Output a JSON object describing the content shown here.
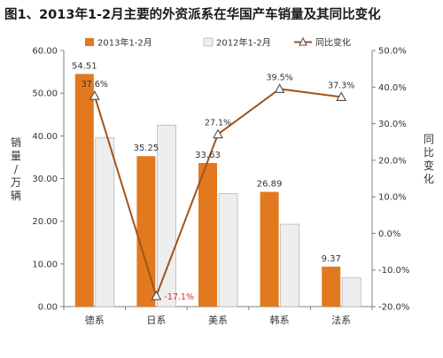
{
  "title": "图1、2013年1-2月主要的外资派系在华国产车销量及其同比变化",
  "ylabel_left_chars": [
    "销",
    "量",
    "/",
    "万",
    "辆"
  ],
  "ylabel_right_chars": [
    "同",
    "比",
    "变",
    "化"
  ],
  "colors": {
    "bar_2013": "#e2791f",
    "bar_2012": "#eeeeee",
    "bar_2012_stroke": "#b8b8b8",
    "line": "#a0541c",
    "negative_label": "#e8281e"
  },
  "chart_data": {
    "type": "bar",
    "categories": [
      "德系",
      "日系",
      "美系",
      "韩系",
      "法系"
    ],
    "series": [
      {
        "name": "2013年1-2月",
        "kind": "bar",
        "axis": "left",
        "values": [
          54.51,
          35.25,
          33.63,
          26.89,
          9.37
        ],
        "labels": [
          "54.51",
          "35.25",
          "33.63",
          "26.89",
          "9.37"
        ]
      },
      {
        "name": "2012年1-2月",
        "kind": "bar",
        "axis": "left",
        "values": [
          39.6,
          42.5,
          26.5,
          19.3,
          6.8
        ]
      },
      {
        "name": "同比变化",
        "kind": "line",
        "axis": "right",
        "values": [
          37.6,
          -17.1,
          27.1,
          39.5,
          37.3
        ],
        "labels": [
          "37.6%",
          "-17.1%",
          "27.1%",
          "39.5%",
          "37.3%"
        ]
      }
    ],
    "ylim_left": [
      0,
      60
    ],
    "yticks_left": [
      "0.00",
      "10.00",
      "20.00",
      "30.00",
      "40.00",
      "50.00",
      "60.00"
    ],
    "ylim_right": [
      -20,
      50
    ],
    "yticks_right": [
      "-20.0%",
      "-10.0%",
      "0.0%",
      "10.0%",
      "20.0%",
      "30.0%",
      "40.0%",
      "50.0%"
    ],
    "legend_position": "top",
    "grid": false
  }
}
